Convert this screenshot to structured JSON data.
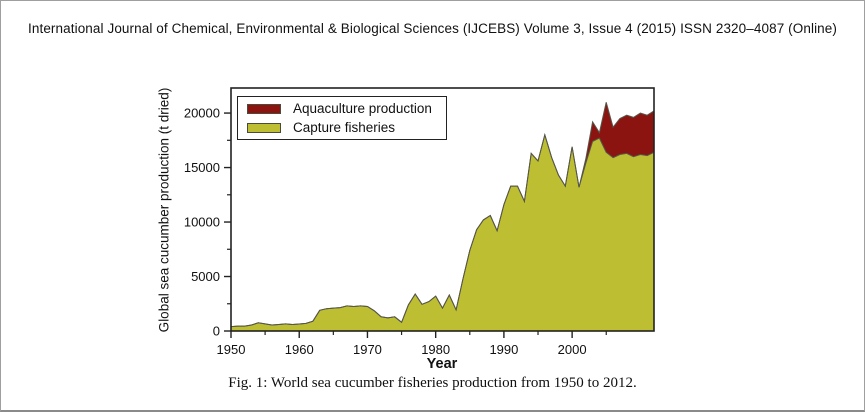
{
  "page": {
    "header": "International Journal of Chemical, Environmental & Biological Sciences (IJCEBS) Volume 3, Issue 4 (2015) ISSN 2320–4087 (Online)",
    "figure_caption": "Fig. 1: World sea cucumber fisheries production from 1950 to 2012."
  },
  "chart_data": {
    "type": "area",
    "stacked": true,
    "title": "",
    "xlabel": "Year",
    "ylabel": "Global sea cucumber production (t dried)",
    "xlim": [
      1950,
      2012
    ],
    "ylim": [
      0,
      22300
    ],
    "x_major_ticks": [
      1950,
      1960,
      1970,
      1980,
      1990,
      2000
    ],
    "x_minor_ticks": [
      1955,
      1965,
      1975,
      1985,
      1995,
      2005
    ],
    "y_major_ticks": [
      0,
      5000,
      10000,
      15000,
      20000
    ],
    "y_minor_ticks": [
      2500,
      7500,
      12500,
      17500
    ],
    "grid": false,
    "legend_position": "top-left",
    "colors": {
      "frame": "#222222",
      "area_outline": "#55554a",
      "text": "#111111"
    },
    "years": [
      1950,
      1951,
      1952,
      1953,
      1954,
      1955,
      1956,
      1957,
      1958,
      1959,
      1960,
      1961,
      1962,
      1963,
      1964,
      1965,
      1966,
      1967,
      1968,
      1969,
      1970,
      1971,
      1972,
      1973,
      1974,
      1975,
      1976,
      1977,
      1978,
      1979,
      1980,
      1981,
      1982,
      1983,
      1984,
      1985,
      1986,
      1987,
      1988,
      1989,
      1990,
      1991,
      1992,
      1993,
      1994,
      1995,
      1996,
      1997,
      1998,
      1999,
      2000,
      2001,
      2002,
      2003,
      2004,
      2005,
      2006,
      2007,
      2008,
      2009,
      2010,
      2011,
      2012
    ],
    "series": [
      {
        "name": "Aquaculture production",
        "color": "#8c1410",
        "stack": "top",
        "values": [
          0,
          0,
          0,
          0,
          0,
          0,
          0,
          0,
          0,
          0,
          0,
          0,
          0,
          0,
          0,
          0,
          0,
          0,
          0,
          0,
          0,
          0,
          0,
          0,
          0,
          0,
          0,
          0,
          0,
          0,
          0,
          0,
          0,
          0,
          0,
          0,
          0,
          0,
          0,
          0,
          0,
          0,
          0,
          0,
          0,
          0,
          0,
          0,
          0,
          0,
          0,
          0,
          400,
          1800,
          500,
          4600,
          2800,
          3300,
          3500,
          3600,
          3800,
          3700,
          3800
        ]
      },
      {
        "name": "Capture fisheries",
        "color": "#bdbe31",
        "stack": "bottom",
        "values": [
          400,
          450,
          450,
          550,
          750,
          650,
          550,
          600,
          650,
          600,
          640,
          700,
          900,
          1900,
          2050,
          2100,
          2150,
          2300,
          2250,
          2300,
          2250,
          1850,
          1300,
          1200,
          1300,
          800,
          2400,
          3400,
          2450,
          2700,
          3200,
          2100,
          3300,
          1950,
          4800,
          7400,
          9300,
          10200,
          10600,
          9200,
          11600,
          13300,
          13300,
          11900,
          16300,
          15600,
          18000,
          15900,
          14300,
          13300,
          16900,
          13200,
          15400,
          17400,
          17700,
          16400,
          15900,
          16200,
          16300,
          16000,
          16200,
          16100,
          16400
        ]
      }
    ]
  }
}
